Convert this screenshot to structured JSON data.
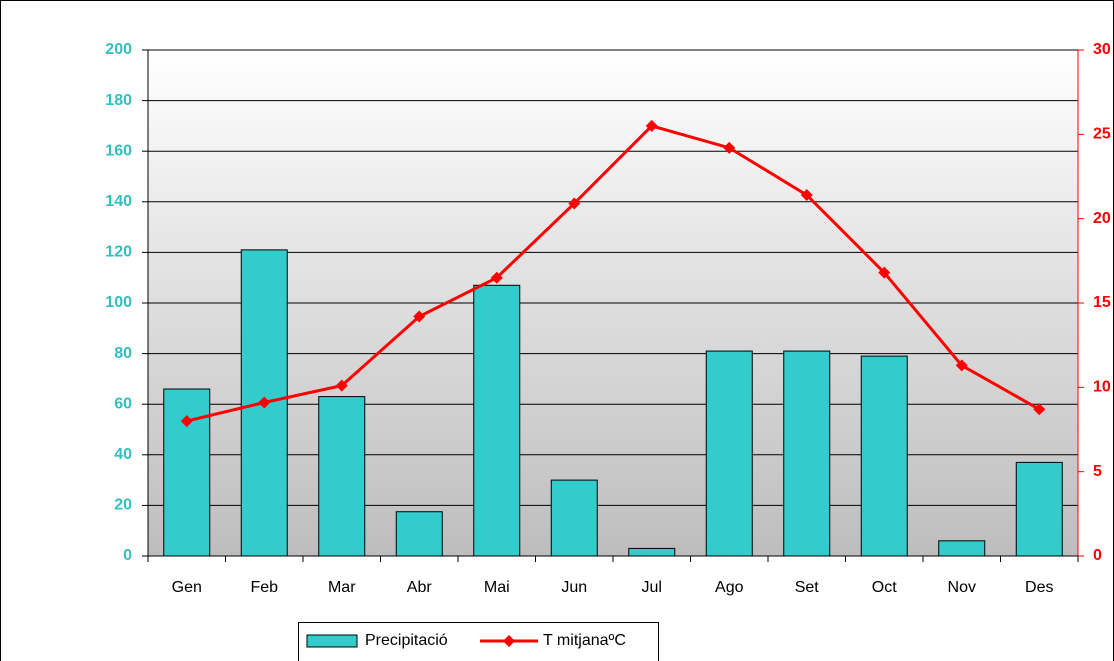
{
  "chart_data": {
    "type": "bar_line",
    "categories": [
      "Gen",
      "Feb",
      "Mar",
      "Abr",
      "Mai",
      "Jun",
      "Jul",
      "Ago",
      "Set",
      "Oct",
      "Nov",
      "Des"
    ],
    "series": [
      {
        "name": "Precipitació",
        "color": "#33cccc",
        "values": [
          66,
          121,
          63,
          17.5,
          107,
          30,
          3,
          81,
          81,
          79,
          6,
          37
        ]
      },
      {
        "name": "T mitjanaºC",
        "color": "#ff0000",
        "axis": "y2",
        "values": [
          8.0,
          9.1,
          10.1,
          14.2,
          16.5,
          20.9,
          25.5,
          24.2,
          21.4,
          16.8,
          11.3,
          8.7
        ]
      }
    ],
    "ylim": [
      0,
      200
    ],
    "yticks": [
      0,
      20,
      40,
      60,
      80,
      100,
      120,
      140,
      160,
      180,
      200
    ],
    "y2lim": [
      0,
      30
    ],
    "y2ticks": [
      0,
      5,
      10,
      15,
      20,
      25,
      30
    ],
    "grid": true,
    "legend": "bottom"
  }
}
